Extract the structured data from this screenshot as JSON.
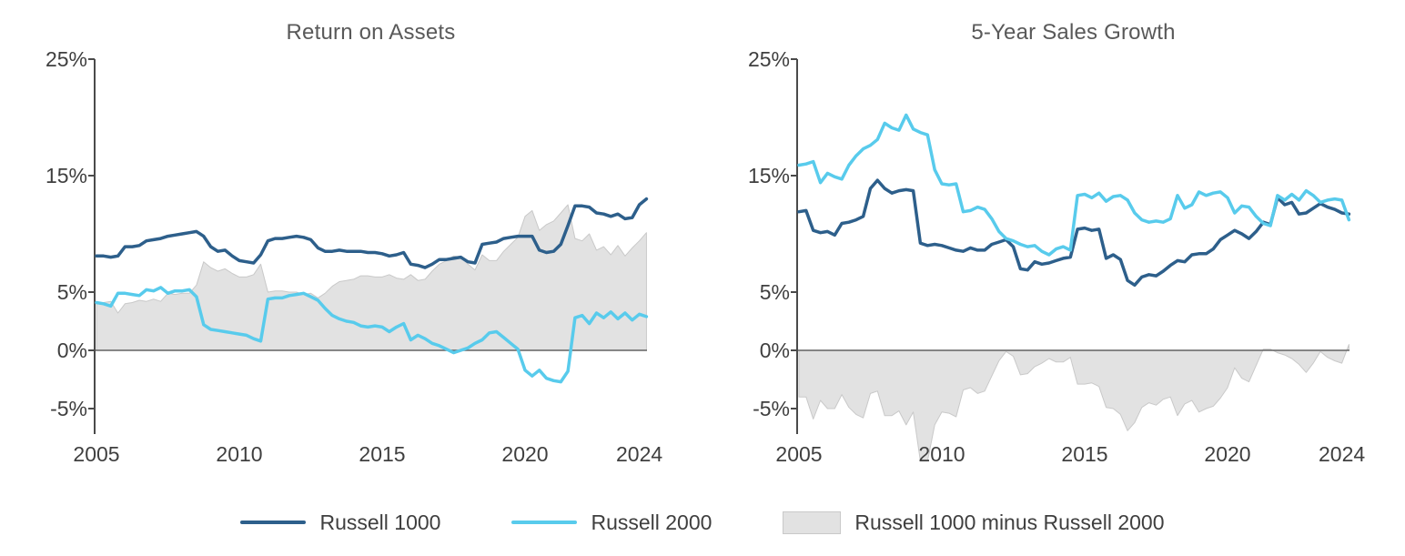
{
  "page": {
    "background": "#ffffff"
  },
  "colors": {
    "russell_1000": "#2D5F8B",
    "russell_2000": "#58CBEC",
    "difference_fill": "#E2E2E2",
    "difference_stroke": "#C9C9C9",
    "zero_line": "#636363",
    "axis": "#4A4A4A",
    "tick_text": "#3F3F3F",
    "title_text": "#595959"
  },
  "legend": {
    "items": [
      {
        "label": "Russell 1000",
        "swatch": "line",
        "color": "#2D5F8B"
      },
      {
        "label": "Russell 2000",
        "swatch": "line",
        "color": "#58CBEC"
      },
      {
        "label": "Russell 1000 minus Russell 2000",
        "swatch": "box",
        "color": "#E2E2E2",
        "stroke": "#C9C9C9"
      }
    ]
  },
  "chart_data": [
    {
      "type": "line",
      "title": "Return on Assets",
      "xlabel": "",
      "ylabel": "",
      "xlim": [
        2005,
        2024.4
      ],
      "ylim": [
        -7.2,
        25
      ],
      "grid": false,
      "x_tick_values": [
        2005,
        2010,
        2015,
        2020,
        2024
      ],
      "x_tick_labels": [
        "2005",
        "2010",
        "2015",
        "2020",
        "2024"
      ],
      "y_tick_values": [
        25,
        15,
        5,
        0,
        -5
      ],
      "y_tick_labels": [
        "25%",
        "15%",
        "5%",
        "0%",
        "-5%"
      ],
      "x": [
        2005,
        2005.25,
        2005.5,
        2005.75,
        2006,
        2006.25,
        2006.5,
        2006.75,
        2007,
        2007.25,
        2007.5,
        2007.75,
        2008,
        2008.25,
        2008.5,
        2008.75,
        2009,
        2009.25,
        2009.5,
        2009.75,
        2010,
        2010.25,
        2010.5,
        2010.75,
        2011,
        2011.25,
        2011.5,
        2011.75,
        2012,
        2012.25,
        2012.5,
        2012.75,
        2013,
        2013.25,
        2013.5,
        2013.75,
        2014,
        2014.25,
        2014.5,
        2014.75,
        2015,
        2015.25,
        2015.5,
        2015.75,
        2016,
        2016.25,
        2016.5,
        2016.75,
        2017,
        2017.25,
        2017.5,
        2017.75,
        2018,
        2018.25,
        2018.5,
        2018.75,
        2019,
        2019.25,
        2019.5,
        2019.75,
        2020,
        2020.25,
        2020.5,
        2020.75,
        2021,
        2021.25,
        2021.5,
        2021.75,
        2022,
        2022.25,
        2022.5,
        2022.75,
        2023,
        2023.25,
        2023.5,
        2023.75,
        2024,
        2024.25
      ],
      "series": [
        {
          "name": "Russell 1000",
          "color": "#2D5F8B",
          "values": [
            8.1,
            8.1,
            8.0,
            8.1,
            8.9,
            8.9,
            9.0,
            9.4,
            9.5,
            9.6,
            9.8,
            9.9,
            10.0,
            10.1,
            10.2,
            9.8,
            8.9,
            8.5,
            8.6,
            8.1,
            7.7,
            7.6,
            7.5,
            8.2,
            9.4,
            9.6,
            9.6,
            9.7,
            9.8,
            9.7,
            9.5,
            8.8,
            8.5,
            8.5,
            8.6,
            8.5,
            8.5,
            8.5,
            8.4,
            8.4,
            8.3,
            8.1,
            8.2,
            8.4,
            7.4,
            7.3,
            7.1,
            7.4,
            7.8,
            7.8,
            7.9,
            8.0,
            7.6,
            7.5,
            9.1,
            9.2,
            9.3,
            9.6,
            9.7,
            9.8,
            9.8,
            9.8,
            8.6,
            8.4,
            8.5,
            9.1,
            10.7,
            12.4,
            12.4,
            12.3,
            11.8,
            11.7,
            11.5,
            11.7,
            11.3,
            11.4,
            12.5,
            13.0
          ]
        },
        {
          "name": "Russell 2000",
          "color": "#58CBEC",
          "values": [
            4.1,
            4.0,
            3.8,
            4.9,
            4.9,
            4.8,
            4.7,
            5.2,
            5.1,
            5.4,
            4.9,
            5.1,
            5.1,
            5.2,
            4.6,
            2.2,
            1.8,
            1.7,
            1.6,
            1.5,
            1.4,
            1.3,
            1.0,
            0.8,
            4.4,
            4.5,
            4.5,
            4.7,
            4.8,
            4.9,
            4.6,
            4.3,
            3.6,
            3.0,
            2.7,
            2.5,
            2.4,
            2.1,
            2.0,
            2.1,
            2.0,
            1.6,
            2.0,
            2.3,
            0.9,
            1.3,
            1.0,
            0.6,
            0.4,
            0.1,
            -0.2,
            0.0,
            0.2,
            0.6,
            0.9,
            1.5,
            1.6,
            1.1,
            0.6,
            0.1,
            -1.7,
            -2.2,
            -1.7,
            -2.4,
            -2.6,
            -2.7,
            -1.8,
            2.8,
            3.0,
            2.3,
            3.2,
            2.8,
            3.3,
            2.7,
            3.2,
            2.6,
            3.1,
            2.9
          ]
        },
        {
          "name": "Russell 1000 minus Russell 2000",
          "type": "area",
          "derived": "series0 minus series1",
          "color": "#E2E2E2",
          "stroke": "#C9C9C9"
        }
      ]
    },
    {
      "type": "line",
      "title": "5-Year Sales Growth",
      "xlabel": "",
      "ylabel": "",
      "xlim": [
        2005,
        2024.4
      ],
      "ylim": [
        -7.2,
        25
      ],
      "grid": false,
      "x_tick_values": [
        2005,
        2010,
        2015,
        2020,
        2024
      ],
      "x_tick_labels": [
        "2005",
        "2010",
        "2015",
        "2020",
        "2024"
      ],
      "y_tick_values": [
        25,
        15,
        5,
        0,
        -5
      ],
      "y_tick_labels": [
        "25%",
        "15%",
        "5%",
        "0%",
        "-5%"
      ],
      "x": [
        2005,
        2005.25,
        2005.5,
        2005.75,
        2006,
        2006.25,
        2006.5,
        2006.75,
        2007,
        2007.25,
        2007.5,
        2007.75,
        2008,
        2008.25,
        2008.5,
        2008.75,
        2009,
        2009.25,
        2009.5,
        2009.75,
        2010,
        2010.25,
        2010.5,
        2010.75,
        2011,
        2011.25,
        2011.5,
        2011.75,
        2012,
        2012.25,
        2012.5,
        2012.75,
        2013,
        2013.25,
        2013.5,
        2013.75,
        2014,
        2014.25,
        2014.5,
        2014.75,
        2015,
        2015.25,
        2015.5,
        2015.75,
        2016,
        2016.25,
        2016.5,
        2016.75,
        2017,
        2017.25,
        2017.5,
        2017.75,
        2018,
        2018.25,
        2018.5,
        2018.75,
        2019,
        2019.25,
        2019.5,
        2019.75,
        2020,
        2020.25,
        2020.5,
        2020.75,
        2021,
        2021.25,
        2021.5,
        2021.75,
        2022,
        2022.25,
        2022.5,
        2022.75,
        2023,
        2023.25,
        2023.5,
        2023.75,
        2024,
        2024.25
      ],
      "series": [
        {
          "name": "Russell 1000",
          "color": "#2D5F8B",
          "values": [
            11.9,
            12.0,
            10.3,
            10.1,
            10.2,
            9.9,
            10.9,
            11.0,
            11.2,
            11.5,
            13.9,
            14.6,
            13.9,
            13.5,
            13.7,
            13.8,
            13.7,
            9.2,
            9.0,
            9.1,
            9.0,
            8.8,
            8.6,
            8.5,
            8.8,
            8.6,
            8.6,
            9.1,
            9.3,
            9.5,
            8.9,
            7.0,
            6.9,
            7.6,
            7.4,
            7.5,
            7.7,
            7.9,
            8.0,
            10.4,
            10.5,
            10.3,
            10.4,
            7.9,
            8.2,
            7.8,
            6.0,
            5.6,
            6.3,
            6.5,
            6.4,
            6.8,
            7.3,
            7.7,
            7.6,
            8.2,
            8.3,
            8.3,
            8.7,
            9.5,
            9.9,
            10.3,
            10.0,
            9.6,
            10.2,
            11.0,
            10.8,
            13.1,
            12.5,
            12.7,
            11.7,
            11.8,
            12.2,
            12.6,
            12.3,
            12.1,
            11.8,
            11.7
          ]
        },
        {
          "name": "Russell 2000",
          "color": "#58CBEC",
          "values": [
            15.9,
            16.0,
            16.2,
            14.4,
            15.2,
            14.9,
            14.7,
            15.9,
            16.7,
            17.3,
            17.6,
            18.1,
            19.5,
            19.1,
            18.9,
            20.2,
            19.0,
            18.7,
            18.5,
            15.5,
            14.3,
            14.2,
            14.3,
            11.9,
            12.0,
            12.3,
            12.1,
            11.3,
            10.2,
            9.6,
            9.4,
            9.1,
            8.9,
            9.0,
            8.5,
            8.2,
            8.7,
            8.9,
            8.6,
            13.3,
            13.4,
            13.1,
            13.5,
            12.8,
            13.2,
            13.3,
            12.9,
            11.8,
            11.2,
            11.0,
            11.1,
            11.0,
            11.3,
            13.3,
            12.2,
            12.5,
            13.6,
            13.3,
            13.5,
            13.6,
            13.1,
            11.8,
            12.4,
            12.3,
            11.5,
            10.9,
            10.7,
            13.3,
            12.9,
            13.4,
            12.9,
            13.7,
            13.3,
            12.7,
            12.9,
            13.0,
            12.9,
            11.2
          ]
        },
        {
          "name": "Russell 1000 minus Russell 2000",
          "type": "area",
          "derived": "series0 minus series1",
          "color": "#E2E2E2",
          "stroke": "#C9C9C9"
        }
      ]
    }
  ]
}
